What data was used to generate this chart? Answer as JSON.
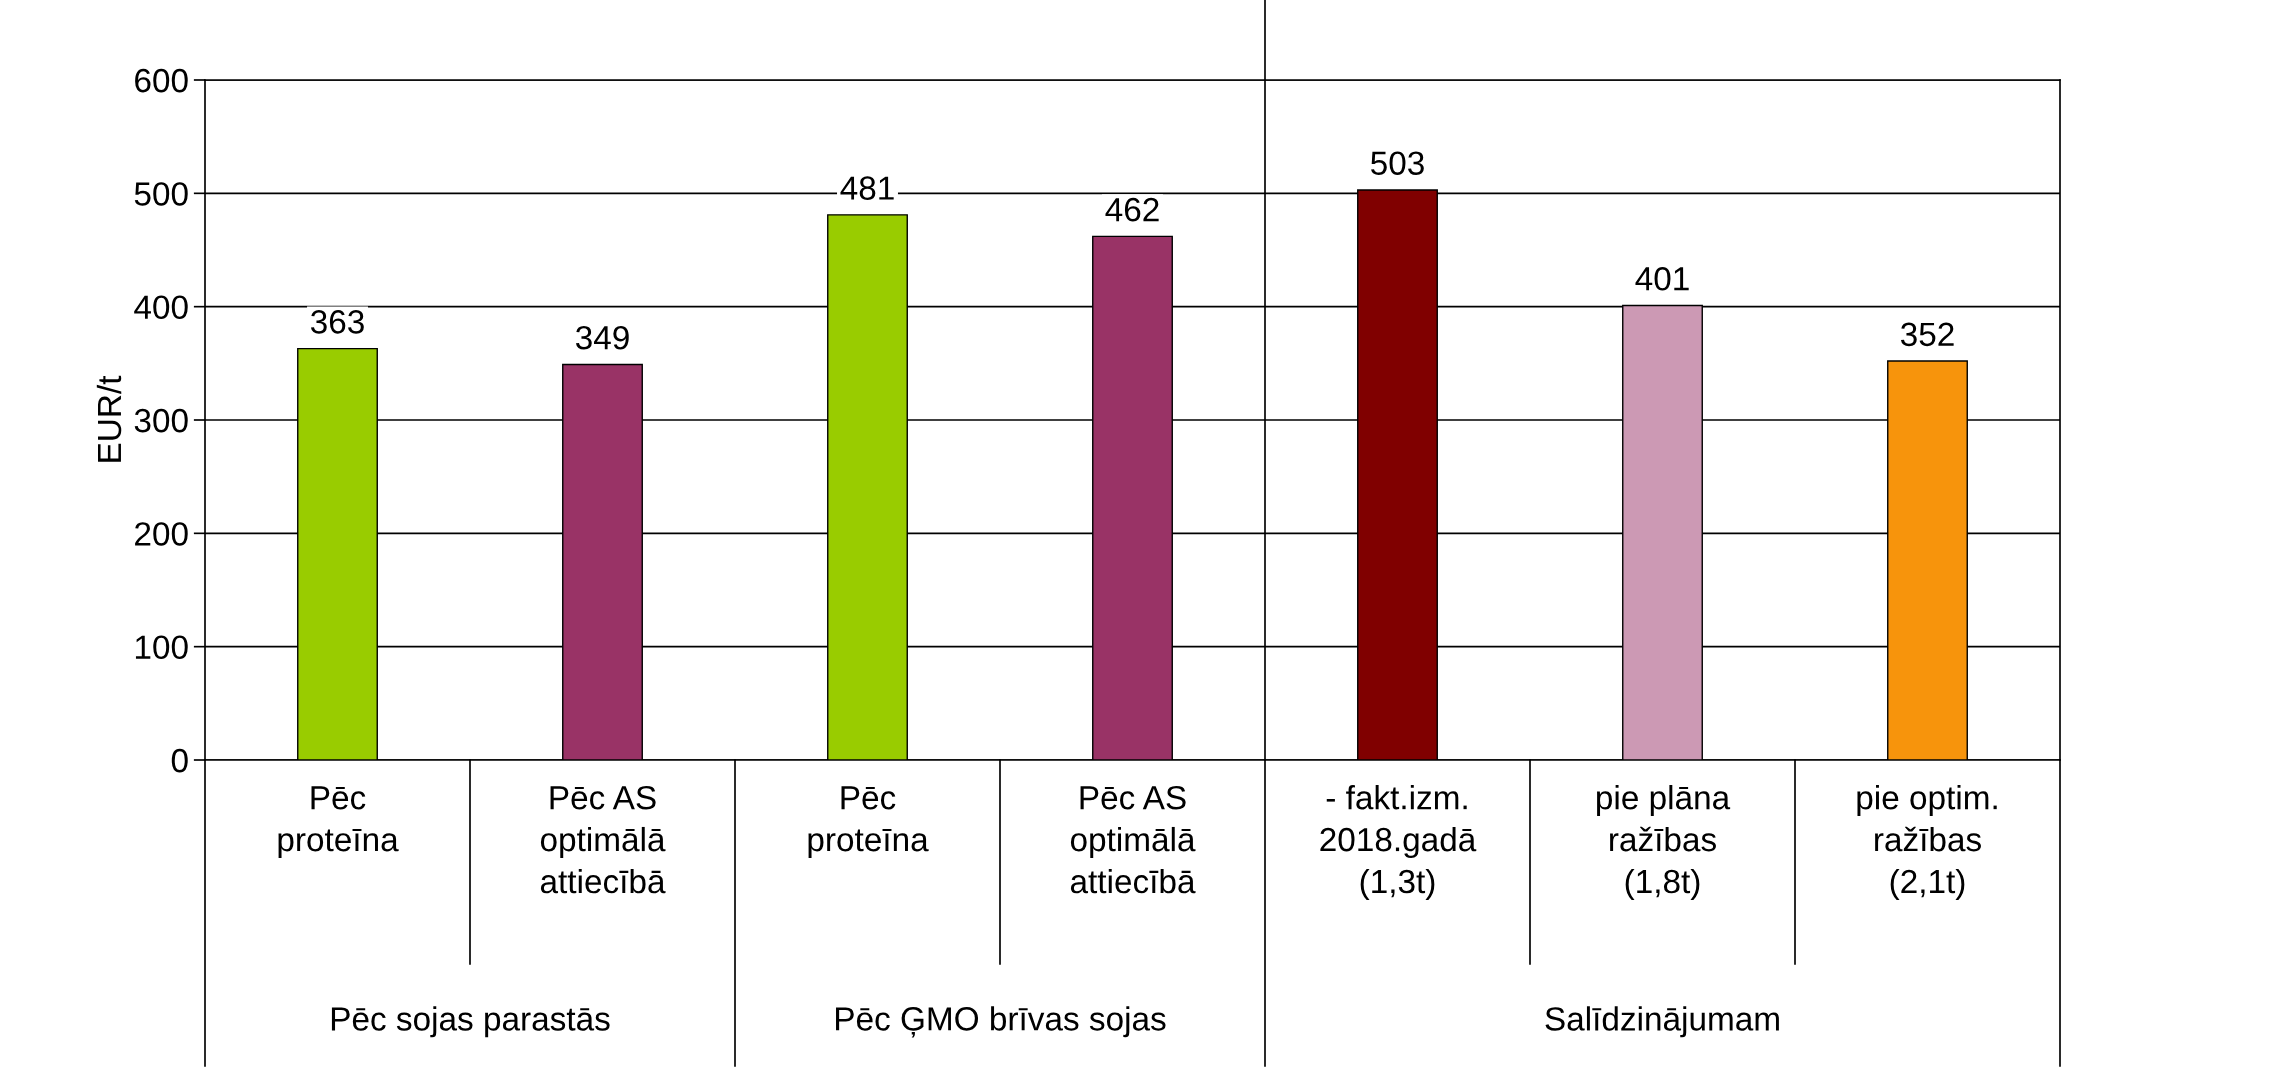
{
  "chart_data": {
    "type": "bar",
    "ylabel": "EUR/t",
    "categories": [
      "Pēc\nproteīna",
      "Pēc AS\noptimālā\nattiecībā",
      "Pēc\nproteīna",
      "Pēc AS\noptimālā\nattiecībā",
      "- fakt.izm.\n2018.gadā\n(1,3t)",
      "pie plāna\nražības\n(1,8t)",
      "pie optim.\nražības\n(2,1t)"
    ],
    "values": [
      363,
      349,
      481,
      462,
      503,
      401,
      352
    ],
    "colors": [
      "#99cc00",
      "#993366",
      "#99cc00",
      "#993366",
      "#800000",
      "#cc99b4",
      "#f7940c"
    ],
    "ylim": [
      0,
      600
    ],
    "yticks": [
      0,
      100,
      200,
      300,
      400,
      500,
      600
    ],
    "grid": "y",
    "data_labels": true,
    "legend": false,
    "annotations": [
      "Pēc sojas parastās",
      "Pēc ĢMO brīvas sojas",
      "Salīdzinājumam"
    ]
  }
}
